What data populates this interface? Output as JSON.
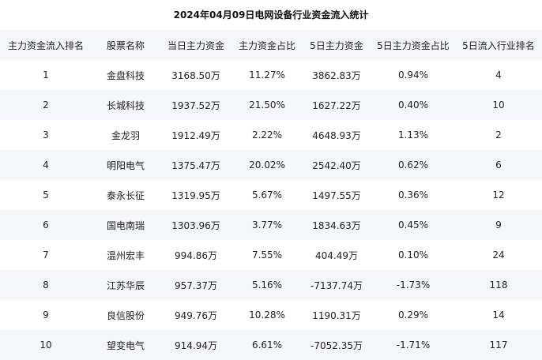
{
  "title": "2024年04月09日电网设备行业资金流入统计",
  "columns": [
    "主力资金流入排名",
    "股票名称",
    "当日主力资金",
    "主力资金占比",
    "5日主力资金",
    "5日主力资金占比",
    "5日流入行业排名"
  ],
  "rows": [
    [
      "1",
      "金盘科技",
      "3168.50万",
      "11.27%",
      "3862.83万",
      "0.94%",
      "4"
    ],
    [
      "2",
      "长城科技",
      "1937.52万",
      "21.50%",
      "1627.22万",
      "0.40%",
      "10"
    ],
    [
      "3",
      "金龙羽",
      "1912.49万",
      "2.22%",
      "4648.93万",
      "1.13%",
      "2"
    ],
    [
      "4",
      "明阳电气",
      "1375.47万",
      "20.02%",
      "2542.40万",
      "0.62%",
      "6"
    ],
    [
      "5",
      "泰永长征",
      "1319.95万",
      "5.67%",
      "1497.55万",
      "0.36%",
      "12"
    ],
    [
      "6",
      "国电南瑞",
      "1303.96万",
      "3.77%",
      "1834.63万",
      "0.45%",
      "9"
    ],
    [
      "7",
      "温州宏丰",
      "994.86万",
      "7.55%",
      "404.49万",
      "0.10%",
      "24"
    ],
    [
      "8",
      "江苏华辰",
      "957.37万",
      "5.16%",
      "-7137.74万",
      "-1.73%",
      "118"
    ],
    [
      "9",
      "良信股份",
      "949.76万",
      "10.28%",
      "1190.31万",
      "0.29%",
      "14"
    ],
    [
      "10",
      "望变电气",
      "914.94万",
      "6.61%",
      "-7052.35万",
      "-1.71%",
      "117"
    ]
  ]
}
